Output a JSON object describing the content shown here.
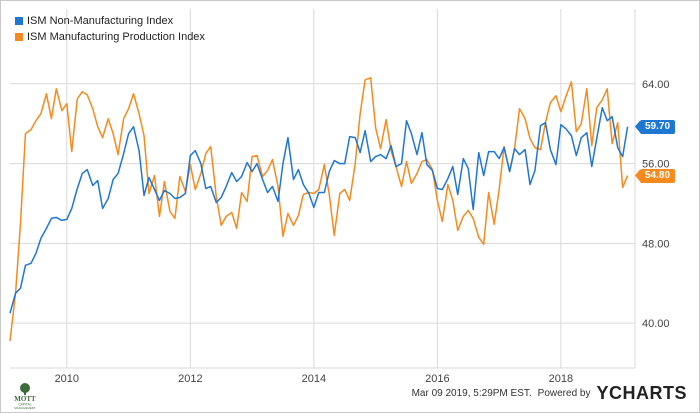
{
  "colors": {
    "series1": "#1f77d4",
    "series2": "#f78a1d",
    "grid": "#d9d9d9",
    "axis_text": "#444444"
  },
  "legend": {
    "items": [
      {
        "label": "ISM Non-Manufacturing Index",
        "color": "#1f77d4"
      },
      {
        "label": "ISM Manufacturing Production Index",
        "color": "#f78a1d"
      }
    ]
  },
  "footer": {
    "timestamp": "Mar 09 2019, 5:29PM EST.",
    "powered_by": "Powered by",
    "brand": "YCHARTS",
    "logo": {
      "name": "MOTT",
      "line2": "CAPITAL",
      "line3": "MANAGEMENT"
    }
  },
  "tags": {
    "series1_value": "59.70",
    "series2_value": "54.80"
  },
  "chart_data": {
    "type": "line",
    "title": "",
    "xlabel": "",
    "ylabel": "",
    "x_ticks": [
      "2010",
      "2012",
      "2014",
      "2016",
      "2018"
    ],
    "y_ticks": [
      "40.00",
      "48.00",
      "56.00",
      "64.00"
    ],
    "ylim": [
      35.5,
      71.5
    ],
    "xlim": [
      2009.08,
      2019.2
    ],
    "grid": true,
    "legend_placement": "top-left",
    "series": [
      {
        "name": "ISM Non-Manufacturing Index",
        "color": "#1f77d4",
        "points": [
          [
            2009.08,
            41.0
          ],
          [
            2009.17,
            43.0
          ],
          [
            2009.25,
            43.5
          ],
          [
            2009.33,
            45.8
          ],
          [
            2009.42,
            46.0
          ],
          [
            2009.5,
            47.0
          ],
          [
            2009.58,
            48.5
          ],
          [
            2009.67,
            49.5
          ],
          [
            2009.75,
            50.5
          ],
          [
            2009.83,
            50.6
          ],
          [
            2009.92,
            50.3
          ],
          [
            2010.0,
            50.4
          ],
          [
            2010.08,
            51.5
          ],
          [
            2010.17,
            53.5
          ],
          [
            2010.25,
            55.0
          ],
          [
            2010.33,
            55.4
          ],
          [
            2010.42,
            53.8
          ],
          [
            2010.5,
            54.3
          ],
          [
            2010.58,
            51.5
          ],
          [
            2010.67,
            52.5
          ],
          [
            2010.75,
            54.4
          ],
          [
            2010.83,
            55.0
          ],
          [
            2010.92,
            57.0
          ],
          [
            2011.0,
            59.0
          ],
          [
            2011.08,
            59.7
          ],
          [
            2011.17,
            57.3
          ],
          [
            2011.25,
            52.8
          ],
          [
            2011.33,
            54.6
          ],
          [
            2011.42,
            53.4
          ],
          [
            2011.5,
            52.3
          ],
          [
            2011.58,
            53.3
          ],
          [
            2011.67,
            53.0
          ],
          [
            2011.75,
            52.5
          ],
          [
            2011.83,
            52.6
          ],
          [
            2011.92,
            53.0
          ],
          [
            2012.0,
            56.8
          ],
          [
            2012.08,
            57.3
          ],
          [
            2012.17,
            56.0
          ],
          [
            2012.25,
            53.5
          ],
          [
            2012.33,
            53.7
          ],
          [
            2012.42,
            52.1
          ],
          [
            2012.5,
            52.6
          ],
          [
            2012.58,
            53.7
          ],
          [
            2012.67,
            55.1
          ],
          [
            2012.75,
            54.2
          ],
          [
            2012.83,
            54.7
          ],
          [
            2012.92,
            56.1
          ],
          [
            2013.0,
            55.2
          ],
          [
            2013.08,
            56.0
          ],
          [
            2013.17,
            54.4
          ],
          [
            2013.25,
            53.1
          ],
          [
            2013.33,
            53.7
          ],
          [
            2013.42,
            52.2
          ],
          [
            2013.5,
            56.0
          ],
          [
            2013.58,
            58.6
          ],
          [
            2013.67,
            54.4
          ],
          [
            2013.75,
            55.4
          ],
          [
            2013.83,
            53.9
          ],
          [
            2013.92,
            53.0
          ],
          [
            2014.0,
            51.6
          ],
          [
            2014.08,
            53.1
          ],
          [
            2014.17,
            53.1
          ],
          [
            2014.25,
            55.2
          ],
          [
            2014.33,
            56.3
          ],
          [
            2014.42,
            56.0
          ],
          [
            2014.5,
            56.0
          ],
          [
            2014.58,
            58.7
          ],
          [
            2014.67,
            58.6
          ],
          [
            2014.75,
            57.1
          ],
          [
            2014.83,
            59.3
          ],
          [
            2014.92,
            56.2
          ],
          [
            2015.0,
            56.7
          ],
          [
            2015.08,
            56.9
          ],
          [
            2015.17,
            56.5
          ],
          [
            2015.25,
            57.8
          ],
          [
            2015.33,
            55.7
          ],
          [
            2015.42,
            56.0
          ],
          [
            2015.5,
            60.3
          ],
          [
            2015.58,
            59.0
          ],
          [
            2015.67,
            56.9
          ],
          [
            2015.75,
            59.1
          ],
          [
            2015.83,
            55.9
          ],
          [
            2015.92,
            55.3
          ],
          [
            2016.0,
            53.5
          ],
          [
            2016.08,
            53.4
          ],
          [
            2016.17,
            54.5
          ],
          [
            2016.25,
            55.7
          ],
          [
            2016.33,
            52.9
          ],
          [
            2016.42,
            56.5
          ],
          [
            2016.5,
            55.5
          ],
          [
            2016.58,
            51.4
          ],
          [
            2016.67,
            57.1
          ],
          [
            2016.75,
            54.8
          ],
          [
            2016.83,
            57.2
          ],
          [
            2016.92,
            57.2
          ],
          [
            2017.0,
            56.5
          ],
          [
            2017.08,
            57.6
          ],
          [
            2017.17,
            55.2
          ],
          [
            2017.25,
            57.5
          ],
          [
            2017.33,
            56.9
          ],
          [
            2017.42,
            57.4
          ],
          [
            2017.5,
            53.9
          ],
          [
            2017.58,
            55.3
          ],
          [
            2017.67,
            59.8
          ],
          [
            2017.75,
            60.1
          ],
          [
            2017.83,
            57.4
          ],
          [
            2017.92,
            55.9
          ],
          [
            2018.0,
            59.9
          ],
          [
            2018.08,
            59.5
          ],
          [
            2018.17,
            58.8
          ],
          [
            2018.25,
            56.8
          ],
          [
            2018.33,
            58.6
          ],
          [
            2018.42,
            59.1
          ],
          [
            2018.5,
            55.7
          ],
          [
            2018.58,
            58.5
          ],
          [
            2018.67,
            61.6
          ],
          [
            2018.75,
            60.3
          ],
          [
            2018.83,
            60.7
          ],
          [
            2018.92,
            57.6
          ],
          [
            2019.0,
            56.7
          ],
          [
            2019.08,
            59.7
          ]
        ]
      },
      {
        "name": "ISM Manufacturing Production Index",
        "color": "#f78a1d",
        "points": [
          [
            2009.08,
            38.2
          ],
          [
            2009.17,
            43.0
          ],
          [
            2009.25,
            50.0
          ],
          [
            2009.33,
            59.0
          ],
          [
            2009.42,
            59.4
          ],
          [
            2009.5,
            60.3
          ],
          [
            2009.58,
            61.0
          ],
          [
            2009.67,
            63.0
          ],
          [
            2009.75,
            60.5
          ],
          [
            2009.83,
            63.5
          ],
          [
            2009.92,
            61.3
          ],
          [
            2010.0,
            62.0
          ],
          [
            2010.08,
            57.2
          ],
          [
            2010.17,
            62.5
          ],
          [
            2010.25,
            63.2
          ],
          [
            2010.33,
            62.9
          ],
          [
            2010.42,
            61.5
          ],
          [
            2010.5,
            59.7
          ],
          [
            2010.58,
            58.6
          ],
          [
            2010.67,
            60.5
          ],
          [
            2010.75,
            59.0
          ],
          [
            2010.83,
            56.9
          ],
          [
            2010.92,
            60.5
          ],
          [
            2011.0,
            61.5
          ],
          [
            2011.08,
            63.0
          ],
          [
            2011.17,
            61.0
          ],
          [
            2011.25,
            58.8
          ],
          [
            2011.33,
            53.0
          ],
          [
            2011.42,
            54.8
          ],
          [
            2011.5,
            50.7
          ],
          [
            2011.58,
            54.2
          ],
          [
            2011.67,
            51.2
          ],
          [
            2011.75,
            50.5
          ],
          [
            2011.83,
            54.7
          ],
          [
            2011.92,
            53.2
          ],
          [
            2012.0,
            55.9
          ],
          [
            2012.08,
            53.4
          ],
          [
            2012.17,
            55.0
          ],
          [
            2012.25,
            57.0
          ],
          [
            2012.33,
            57.7
          ],
          [
            2012.42,
            52.7
          ],
          [
            2012.5,
            49.8
          ],
          [
            2012.58,
            50.7
          ],
          [
            2012.67,
            51.1
          ],
          [
            2012.75,
            49.5
          ],
          [
            2012.83,
            53.1
          ],
          [
            2012.92,
            52.2
          ],
          [
            2013.0,
            56.7
          ],
          [
            2013.08,
            56.8
          ],
          [
            2013.17,
            54.7
          ],
          [
            2013.25,
            55.3
          ],
          [
            2013.33,
            56.4
          ],
          [
            2013.42,
            53.7
          ],
          [
            2013.5,
            48.7
          ],
          [
            2013.58,
            51.0
          ],
          [
            2013.67,
            49.8
          ],
          [
            2013.75,
            50.8
          ],
          [
            2013.83,
            52.9
          ],
          [
            2013.92,
            53.1
          ],
          [
            2014.0,
            53.0
          ],
          [
            2014.08,
            53.4
          ],
          [
            2014.17,
            55.9
          ],
          [
            2014.25,
            52.9
          ],
          [
            2014.33,
            48.8
          ],
          [
            2014.42,
            53.0
          ],
          [
            2014.5,
            53.4
          ],
          [
            2014.58,
            52.3
          ],
          [
            2014.67,
            56.0
          ],
          [
            2014.75,
            61.0
          ],
          [
            2014.83,
            64.4
          ],
          [
            2014.92,
            64.6
          ],
          [
            2015.0,
            59.6
          ],
          [
            2015.08,
            57.5
          ],
          [
            2015.17,
            60.4
          ],
          [
            2015.25,
            57.3
          ],
          [
            2015.33,
            55.7
          ],
          [
            2015.42,
            53.7
          ],
          [
            2015.5,
            56.2
          ],
          [
            2015.58,
            54.0
          ],
          [
            2015.67,
            55.0
          ],
          [
            2015.75,
            56.2
          ],
          [
            2015.83,
            56.4
          ],
          [
            2015.92,
            55.4
          ],
          [
            2016.0,
            52.3
          ],
          [
            2016.08,
            50.2
          ],
          [
            2016.17,
            53.9
          ],
          [
            2016.25,
            52.3
          ],
          [
            2016.33,
            49.3
          ],
          [
            2016.42,
            50.7
          ],
          [
            2016.5,
            51.3
          ],
          [
            2016.58,
            50.5
          ],
          [
            2016.67,
            48.6
          ],
          [
            2016.75,
            47.9
          ],
          [
            2016.83,
            53.1
          ],
          [
            2016.92,
            49.9
          ],
          [
            2017.0,
            53.4
          ],
          [
            2017.08,
            57.7
          ],
          [
            2017.17,
            55.2
          ],
          [
            2017.25,
            57.5
          ],
          [
            2017.33,
            61.5
          ],
          [
            2017.42,
            60.5
          ],
          [
            2017.5,
            58.5
          ],
          [
            2017.58,
            57.6
          ],
          [
            2017.67,
            57.4
          ],
          [
            2017.75,
            60.1
          ],
          [
            2017.83,
            62.1
          ],
          [
            2017.92,
            62.8
          ],
          [
            2018.0,
            61.2
          ],
          [
            2018.08,
            62.7
          ],
          [
            2018.17,
            64.2
          ],
          [
            2018.25,
            59.2
          ],
          [
            2018.33,
            60.0
          ],
          [
            2018.42,
            63.5
          ],
          [
            2018.5,
            57.8
          ],
          [
            2018.58,
            61.6
          ],
          [
            2018.67,
            62.4
          ],
          [
            2018.75,
            63.5
          ],
          [
            2018.83,
            58.0
          ],
          [
            2018.92,
            60.1
          ],
          [
            2019.0,
            53.6
          ],
          [
            2019.08,
            54.8
          ]
        ]
      }
    ]
  }
}
